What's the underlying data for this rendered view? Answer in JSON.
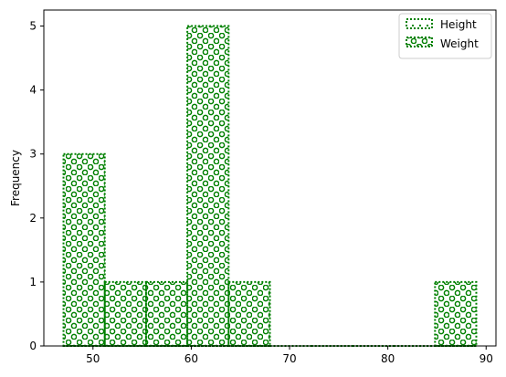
{
  "chart_data": {
    "type": "bar",
    "title": "",
    "xlabel": "",
    "ylabel": "Frequency",
    "xlim": [
      45,
      91
    ],
    "ylim": [
      0,
      5.25
    ],
    "xticks": [
      50,
      60,
      70,
      80,
      90
    ],
    "yticks": [
      0,
      1,
      2,
      3,
      4,
      5
    ],
    "grid": false,
    "legend_position": "top-right",
    "bar_color": "#008000",
    "series": [
      {
        "name": "Height",
        "hatch": "dotted",
        "bins": [
          {
            "x0": 47.0,
            "x1": 51.2,
            "value": 0
          },
          {
            "x0": 51.2,
            "x1": 55.4,
            "value": 0
          },
          {
            "x0": 55.4,
            "x1": 59.6,
            "value": 0
          },
          {
            "x0": 59.6,
            "x1": 63.8,
            "value": 0
          },
          {
            "x0": 63.8,
            "x1": 68.0,
            "value": 0
          },
          {
            "x0": 68.0,
            "x1": 72.2,
            "value": 0
          },
          {
            "x0": 72.2,
            "x1": 76.4,
            "value": 0
          },
          {
            "x0": 76.4,
            "x1": 80.6,
            "value": 0
          },
          {
            "x0": 80.6,
            "x1": 84.8,
            "value": 0
          },
          {
            "x0": 84.8,
            "x1": 89.0,
            "value": 0
          }
        ]
      },
      {
        "name": "Weight",
        "hatch": "circles",
        "bins": [
          {
            "x0": 47.0,
            "x1": 51.2,
            "value": 3
          },
          {
            "x0": 51.2,
            "x1": 55.4,
            "value": 1
          },
          {
            "x0": 55.4,
            "x1": 59.6,
            "value": 1
          },
          {
            "x0": 59.6,
            "x1": 63.8,
            "value": 5
          },
          {
            "x0": 63.8,
            "x1": 68.0,
            "value": 1
          },
          {
            "x0": 68.0,
            "x1": 72.2,
            "value": 0
          },
          {
            "x0": 72.2,
            "x1": 76.4,
            "value": 0
          },
          {
            "x0": 76.4,
            "x1": 80.6,
            "value": 0
          },
          {
            "x0": 80.6,
            "x1": 84.8,
            "value": 0
          },
          {
            "x0": 84.8,
            "x1": 89.0,
            "value": 1
          }
        ]
      }
    ]
  }
}
